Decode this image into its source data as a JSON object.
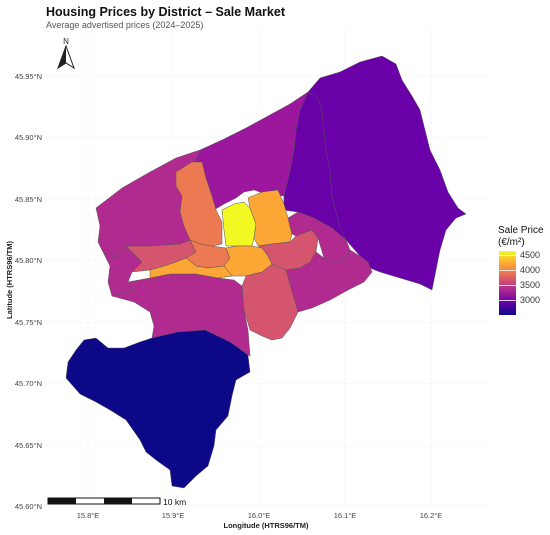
{
  "title": "Housing Prices by District – Sale Market",
  "subtitle": "Average advertised prices (2024–2025)",
  "north_arrow": {
    "label": "N"
  },
  "axes": {
    "x_label": "Longitude (HTRS96/TM)",
    "y_label": "Latitude (HTRS96/TM)",
    "x_ticks": [
      "15.8°E",
      "15.9°E",
      "16.0°E",
      "16.1°E",
      "16.2°E"
    ],
    "y_ticks": [
      "45.95°N",
      "45.90°N",
      "45.85°N",
      "45.80°N",
      "45.75°N",
      "45.70°N",
      "45.65°N",
      "45.60°N"
    ]
  },
  "scale_bar": {
    "label": "10 km"
  },
  "legend": {
    "title_line1": "Sale Price",
    "title_line2": "(€/m²)",
    "ticks": [
      "4500",
      "4000",
      "3500",
      "3000"
    ],
    "palette": [
      "#0d0887",
      "#6a00a8",
      "#b12a90",
      "#e16462",
      "#fca636",
      "#f0f921"
    ]
  },
  "colors": {
    "district_very_low": "#0d0887",
    "district_low": "#6a00a8",
    "district_mid_low": "#9c179e",
    "district_mid": "#b12a90",
    "district_mid_high": "#d5546e",
    "district_high": "#ed7953",
    "district_higher": "#fca636",
    "district_top": "#f0f921"
  }
}
